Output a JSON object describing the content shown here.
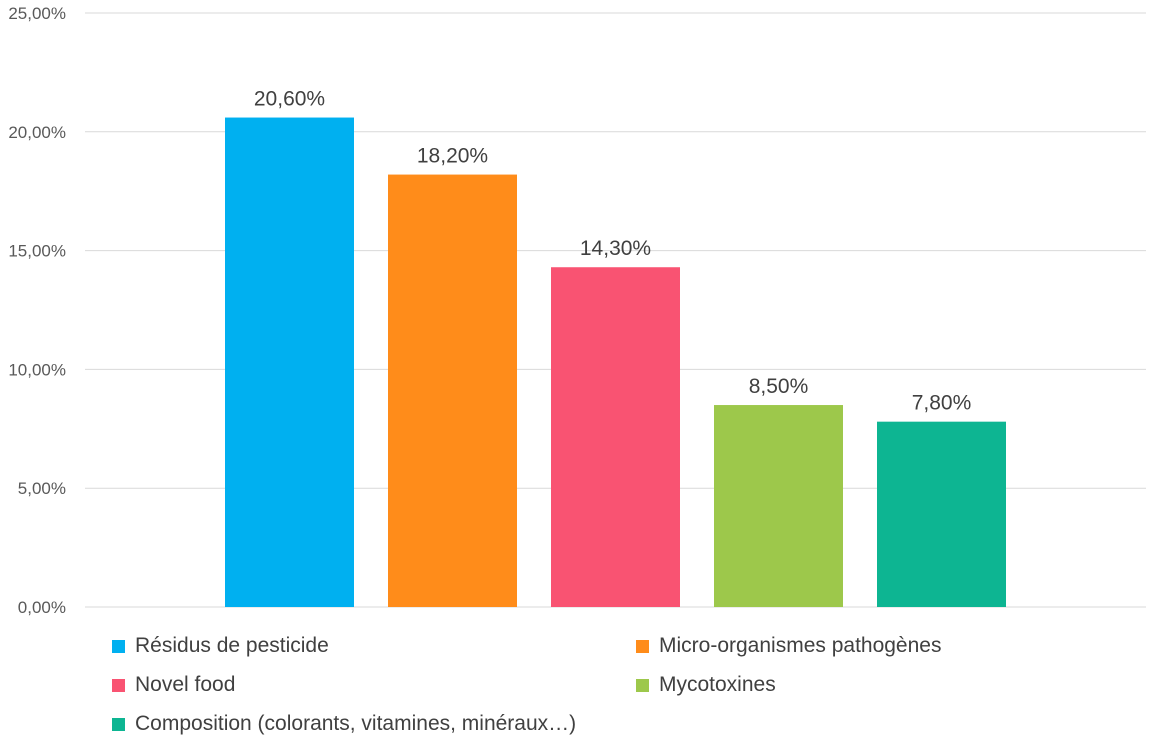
{
  "chart_data": {
    "type": "bar",
    "categories": [
      "Résidus de pesticide",
      "Micro-organismes pathogènes",
      "Novel food",
      "Mycotoxines",
      "Composition (colorants, vitamines, minéraux…)"
    ],
    "values": [
      20.6,
      18.2,
      14.3,
      8.5,
      7.8
    ],
    "data_labels": [
      "20,60%",
      "18,20%",
      "14,30%",
      "8,50%",
      "7,80%"
    ],
    "colors": [
      "#00b0f0",
      "#ff8c1a",
      "#f95372",
      "#9dc84b",
      "#0db592"
    ],
    "ylim": [
      0,
      25
    ],
    "yticks": [
      0,
      5,
      10,
      15,
      20,
      25
    ],
    "ytick_labels": [
      "0,00%",
      "5,00%",
      "10,00%",
      "15,00%",
      "20,00%",
      "25,00%"
    ],
    "grid": true,
    "legend_position": "bottom",
    "title": "",
    "xlabel": "",
    "ylabel": ""
  }
}
